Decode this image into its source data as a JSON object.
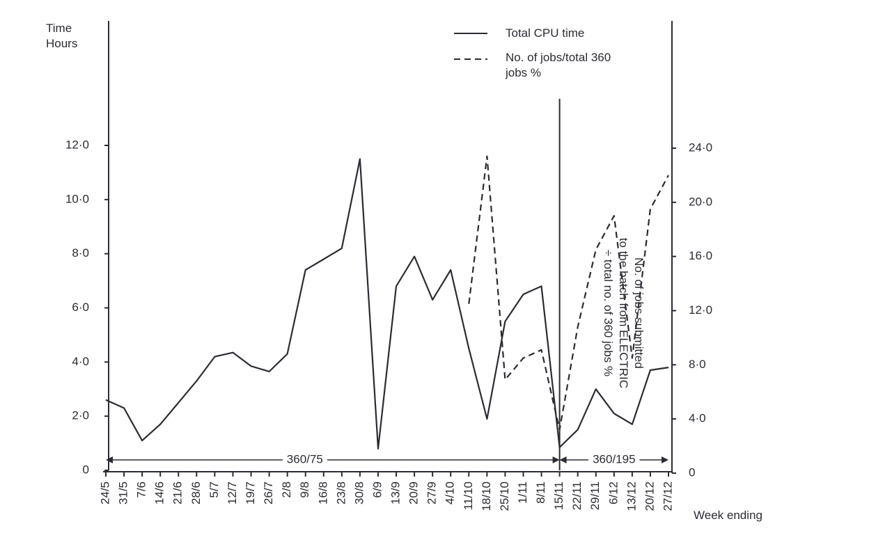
{
  "chart_data": {
    "type": "line",
    "y_label": [
      "Time",
      "Hours"
    ],
    "y2_label": [
      "No. of jobs submitted",
      "to the batch from ELECTRIC",
      "÷ total no. of 360 jobs %"
    ],
    "x_label": "Week ending",
    "categories": [
      "24/5",
      "31/5",
      "7/6",
      "14/6",
      "21/6",
      "28/6",
      "5/7",
      "12/7",
      "19/7",
      "26/7",
      "2/8",
      "9/8",
      "16/8",
      "23/8",
      "30/8",
      "6/9",
      "13/9",
      "20/9",
      "27/9",
      "4/10",
      "11/10",
      "18/10",
      "25/10",
      "1/11",
      "8/11",
      "15/11",
      "22/11",
      "29/11",
      "6/12",
      "13/12",
      "20/12",
      "27/12"
    ],
    "series": [
      {
        "name": "Total CPU time",
        "color": "#2b2b33",
        "dash": false,
        "values": [
          2.6,
          2.3,
          1.1,
          1.7,
          2.5,
          3.3,
          4.2,
          4.35,
          3.85,
          3.65,
          4.3,
          7.4,
          7.8,
          8.2,
          11.5,
          0.8,
          6.8,
          7.9,
          6.3,
          7.4,
          4.5,
          1.9,
          5.5,
          6.5,
          6.8,
          0.85,
          1.5,
          3.0,
          2.1,
          1.7,
          3.7,
          3.8
        ]
      },
      {
        "name": "No. of jobs/total 360 jobs %",
        "color": "#2b2b33",
        "dash": true,
        "axis": "y2",
        "values": [
          null,
          null,
          null,
          null,
          null,
          null,
          null,
          null,
          null,
          null,
          null,
          null,
          null,
          null,
          null,
          null,
          null,
          null,
          null,
          null,
          12.5,
          23.4,
          6.9,
          8.5,
          9.1,
          3.2,
          10.8,
          16.5,
          19.0,
          8.5,
          19.5,
          22.0
        ]
      }
    ],
    "ylim": [
      0,
      16.6
    ],
    "yticks": [
      0,
      {
        "value": 2,
        "label": "2·0"
      },
      {
        "value": 4,
        "label": "4·0"
      },
      {
        "value": 6,
        "label": "6·0"
      },
      {
        "value": 8,
        "label": "8·0"
      },
      {
        "value": 10,
        "label": "10·0"
      },
      {
        "value": 12,
        "label": "12·0"
      }
    ],
    "y2lim": [
      0,
      33.4
    ],
    "y2ticks": [
      0,
      {
        "value": 4,
        "label": "4·0"
      },
      {
        "value": 8,
        "label": "8·0"
      },
      {
        "value": 12,
        "label": "12·0"
      },
      {
        "value": 16,
        "label": "16·0"
      },
      {
        "value": 20,
        "label": "20·0"
      },
      {
        "value": 24,
        "label": "24·0"
      }
    ],
    "periods": [
      {
        "label": "360/75",
        "from": "24/5",
        "to": "15/11"
      },
      {
        "label": "360/195",
        "from": "15/11",
        "to": "27/12"
      }
    ]
  }
}
